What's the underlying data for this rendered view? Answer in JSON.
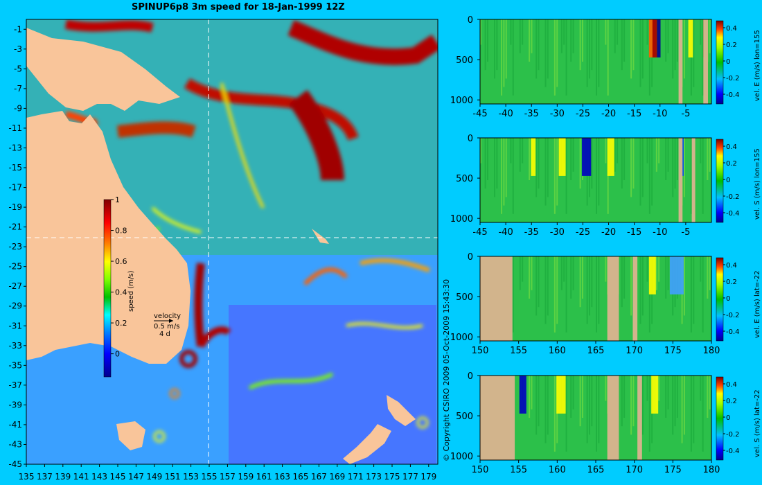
{
  "title": "SPINUP6p8 3m speed for 18-Jan-1999 12Z",
  "copyright": "© Copyright CSIRO 2009   05-Oct-2009 15:43:30",
  "colors": {
    "background": "#00ccff",
    "land": "#f9c59a",
    "section_land": "#d2b48c",
    "colormap": [
      "#00008f",
      "#0000ff",
      "#0080ff",
      "#00ffff",
      "#00c000",
      "#80ff00",
      "#ffff00",
      "#ff8000",
      "#ff0000",
      "#800000"
    ]
  },
  "chart_data": [
    {
      "type": "heatmap",
      "name": "surface speed map",
      "xlabel": "",
      "ylabel": "",
      "xlim": [
        135,
        180
      ],
      "ylim": [
        -45,
        0
      ],
      "x_ticks": [
        "135",
        "137",
        "139",
        "141",
        "143",
        "145",
        "147",
        "149",
        "151",
        "153",
        "155",
        "157",
        "159",
        "161",
        "163",
        "165",
        "167",
        "169",
        "171",
        "173",
        "175",
        "177",
        "179"
      ],
      "y_ticks": [
        "-1",
        "-3",
        "-5",
        "-7",
        "-9",
        "-11",
        "-13",
        "-15",
        "-17",
        "-19",
        "-21",
        "-23",
        "-25",
        "-27",
        "-29",
        "-31",
        "-33",
        "-35",
        "-37",
        "-39",
        "-41",
        "-43",
        "-45"
      ],
      "colorbar": {
        "label": "speed (m/s)",
        "ticks": [
          "1",
          "0.8",
          "0.6",
          "0.4",
          "0.2",
          "0"
        ],
        "range": [
          -0.15,
          1
        ]
      },
      "section_lines": {
        "lon": 155,
        "lat": -22
      },
      "velocity_key": {
        "line1": "velocity",
        "line2": "0.5 m/s",
        "line3": "4 d"
      }
    },
    {
      "type": "heatmap",
      "name": "section lon=155 vel E",
      "x_ticks": [
        "-45",
        "-40",
        "-35",
        "-30",
        "-25",
        "-20",
        "-15",
        "-10",
        "-5"
      ],
      "xlim": [
        -45,
        0
      ],
      "y_ticks": [
        "0",
        "500",
        "1000"
      ],
      "ylim": [
        0,
        1050
      ],
      "colorbar": {
        "label": "vel. E (m/s) lon=155",
        "ticks": [
          "0.4",
          "0.2",
          "0",
          "-0.2",
          "-0.4"
        ]
      }
    },
    {
      "type": "heatmap",
      "name": "section lon=155 vel S",
      "x_ticks": [
        "-45",
        "-40",
        "-35",
        "-30",
        "-25",
        "-20",
        "-15",
        "-10",
        "-5"
      ],
      "xlim": [
        -45,
        0
      ],
      "y_ticks": [
        "0",
        "500",
        "1000"
      ],
      "ylim": [
        0,
        1050
      ],
      "colorbar": {
        "label": "vel. S (m/s) lon=155",
        "ticks": [
          "0.4",
          "0.2",
          "0",
          "-0.2",
          "-0.4"
        ]
      }
    },
    {
      "type": "heatmap",
      "name": "section lat=-22 vel E",
      "x_ticks": [
        "150",
        "155",
        "160",
        "165",
        "170",
        "175",
        "180"
      ],
      "xlim": [
        150,
        180
      ],
      "y_ticks": [
        "0",
        "500",
        "1000"
      ],
      "ylim": [
        0,
        1050
      ],
      "colorbar": {
        "label": "vel. E (m/s) lat=-22",
        "ticks": [
          "0.4",
          "0.2",
          "0",
          "-0.2",
          "-0.4"
        ]
      }
    },
    {
      "type": "heatmap",
      "name": "section lat=-22 vel S",
      "x_ticks": [
        "150",
        "155",
        "160",
        "165",
        "170",
        "175",
        "180"
      ],
      "xlim": [
        150,
        180
      ],
      "y_ticks": [
        "0",
        "500",
        "1000"
      ],
      "ylim": [
        0,
        1050
      ],
      "colorbar": {
        "label": "vel. S (m/s) lat=-22",
        "ticks": [
          "0.4",
          "0.2",
          "0",
          "-0.2",
          "-0.4"
        ]
      }
    }
  ]
}
